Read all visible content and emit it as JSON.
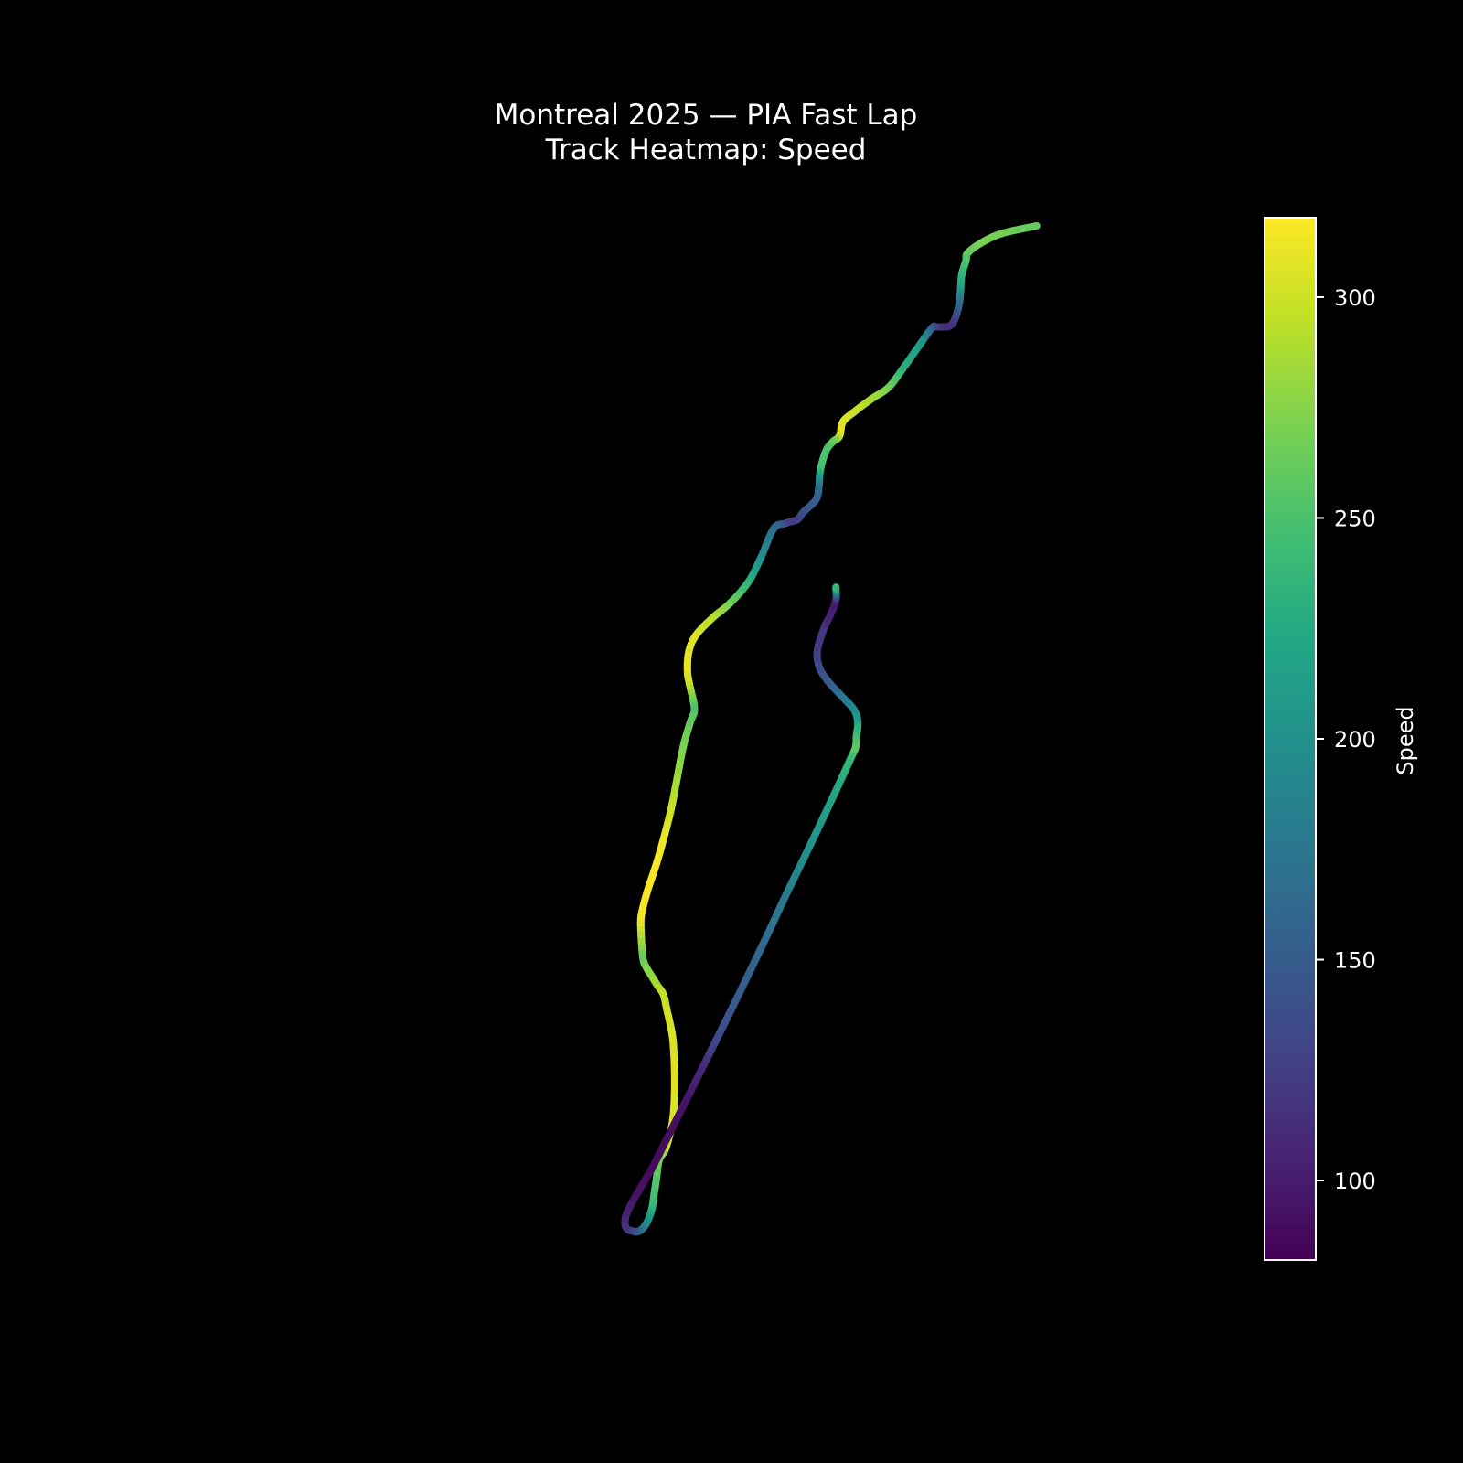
{
  "chart_data": {
    "type": "heatmap",
    "title": "Montreal 2025 — PIA Fast Lap",
    "subtitle": "Track Heatmap: Speed",
    "colorbar": {
      "label": "Speed",
      "range": [
        82,
        318
      ],
      "ticks": [
        100,
        150,
        200,
        250,
        300
      ],
      "colormap": "viridis",
      "placement": "right"
    },
    "background": "#000000",
    "text_color": "#ffffff",
    "grid": false,
    "axes_visible": false,
    "track": {
      "x": [
        3550,
        3300,
        3150,
        3060,
        3050,
        3020,
        3012,
        3003,
        2975,
        2940,
        2890,
        2840,
        2810,
        2720,
        2600,
        2500,
        2380,
        2260,
        2180,
        2160,
        2140,
        2110,
        2060,
        2020,
        2010,
        1990,
        1900,
        1860,
        1820,
        1770,
        1690,
        1600,
        1510,
        1380,
        1260,
        1140,
        1090,
        1080,
        1095,
        1130,
        1100,
        1050,
        1000,
        960,
        895,
        850,
        800,
        760,
        750,
        765,
        790,
        830,
        870,
        910,
        935,
        960,
        980,
        990,
        980,
        950,
        920,
        880,
        860,
        845,
        830,
        800,
        760,
        720,
        700,
        660,
        640,
        640,
        650,
        700,
        800,
        850,
        1050,
        1200,
        1300,
        1460,
        1640,
        1780,
        1950,
        2125,
        2240,
        2270,
        2275,
        2285,
        2260,
        2170,
        2070,
        2010,
        2000,
        2050,
        2090,
        2130,
        2130
      ],
      "y": [
        -145,
        -90,
        -20,
        50,
        100,
        200,
        300,
        400,
        505,
        560,
        570,
        570,
        575,
        700,
        870,
        1000,
        1080,
        1170,
        1240,
        1330,
        1360,
        1380,
        1445,
        1580,
        1700,
        1790,
        1880,
        1930,
        1945,
        1960,
        1995,
        2200,
        2375,
        2525,
        2625,
        2750,
        2865,
        3000,
        3100,
        3270,
        3365,
        3540,
        3800,
        4000,
        4250,
        4400,
        4550,
        4700,
        4800,
        5030,
        5100,
        5165,
        5230,
        5290,
        5400,
        5510,
        5640,
        5900,
        6150,
        6300,
        6395,
        6460,
        6600,
        6700,
        6800,
        6890,
        6950,
        6970,
        6965,
        6955,
        6925,
        6880,
        6840,
        6740,
        6570,
        6480,
        6080,
        5780,
        5580,
        5255,
        4880,
        4580,
        4230,
        3860,
        3610,
        3540,
        3460,
        3370,
        3280,
        3180,
        3070,
        2970,
        2850,
        2690,
        2610,
        2500,
        2410
      ],
      "speed": [
        260,
        268,
        270,
        262,
        255,
        240,
        220,
        170,
        135,
        118,
        112,
        118,
        140,
        210,
        230,
        265,
        285,
        298,
        305,
        310,
        292,
        268,
        250,
        250,
        175,
        155,
        145,
        132,
        125,
        128,
        160,
        195,
        230,
        265,
        290,
        305,
        308,
        310,
        302,
        250,
        260,
        270,
        285,
        300,
        313,
        316,
        317,
        316,
        313,
        262,
        270,
        278,
        286,
        295,
        300,
        304,
        306,
        306,
        305,
        302,
        298,
        275,
        255,
        250,
        240,
        205,
        180,
        160,
        142,
        130,
        118,
        112,
        108,
        98,
        90,
        88,
        92,
        110,
        135,
        150,
        165,
        180,
        200,
        220,
        240,
        260,
        250,
        230,
        200,
        175,
        150,
        135,
        125,
        118,
        105,
        100,
        250
      ]
    }
  }
}
